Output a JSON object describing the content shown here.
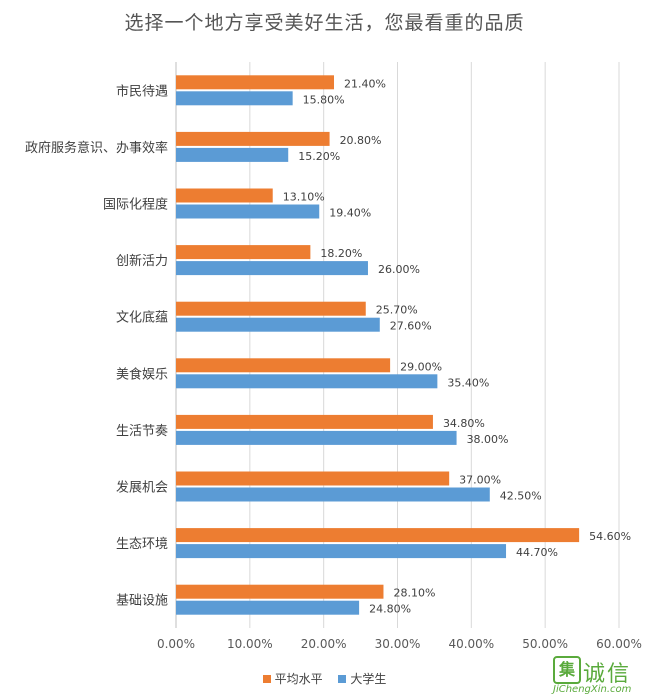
{
  "chart_data": {
    "type": "bar",
    "orientation": "horizontal",
    "title": "选择一个地方享受美好生活，您最看重的品质",
    "categories": [
      "市民待遇",
      "政府服务意识、办事效率",
      "国际化程度",
      "创新活力",
      "文化底蕴",
      "美食娱乐",
      "生活节奏",
      "发展机会",
      "生态环境",
      "基础设施"
    ],
    "series": [
      {
        "name": "平均水平",
        "color": "#ED7D31",
        "values": [
          21.4,
          20.8,
          13.1,
          18.2,
          25.7,
          29.0,
          34.8,
          37.0,
          54.6,
          28.1
        ],
        "labels": [
          "21.40%",
          "20.80%",
          "13.10%",
          "18.20%",
          "25.70%",
          "29.00%",
          "34.80%",
          "37.00%",
          "54.60%",
          "28.10%"
        ]
      },
      {
        "name": "大学生",
        "color": "#5B9BD5",
        "values": [
          15.8,
          15.2,
          19.4,
          26.0,
          27.6,
          35.4,
          38.0,
          42.5,
          44.7,
          24.8
        ],
        "labels": [
          "15.80%",
          "15.20%",
          "19.40%",
          "26.00%",
          "27.60%",
          "35.40%",
          "38.00%",
          "42.50%",
          "44.70%",
          "24.80%"
        ]
      }
    ],
    "xlim": [
      0,
      60
    ],
    "xticks": [
      0,
      10,
      20,
      30,
      40,
      50,
      60
    ],
    "xtick_labels": [
      "0.00%",
      "10.00%",
      "20.00%",
      "30.00%",
      "40.00%",
      "50.00%",
      "60.00%"
    ],
    "grid": true,
    "legend": "bottom"
  },
  "legend": {
    "items": [
      {
        "label": "平均水平",
        "color": "#ED7D31"
      },
      {
        "label": "大学生",
        "color": "#5B9BD5"
      }
    ]
  },
  "watermark": {
    "site_cn": "诚信",
    "site_en": "JiChengXin.com",
    "mark": "集"
  }
}
